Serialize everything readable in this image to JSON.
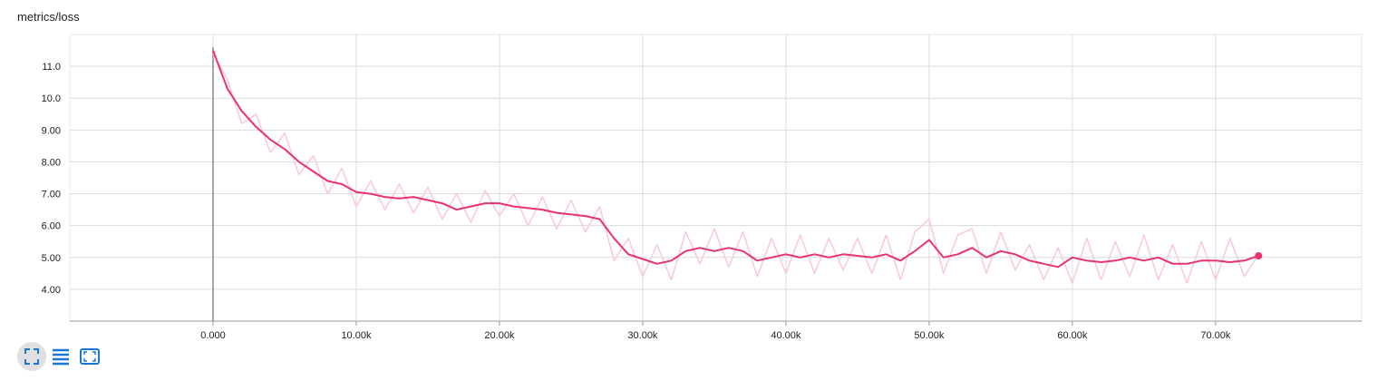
{
  "chart_data": {
    "type": "line",
    "title": "metrics/loss",
    "x": [
      0,
      1000,
      2000,
      3000,
      4000,
      5000,
      6000,
      7000,
      8000,
      9000,
      10000,
      11000,
      12000,
      13000,
      14000,
      15000,
      16000,
      17000,
      18000,
      19000,
      20000,
      21000,
      22000,
      23000,
      24000,
      25000,
      26000,
      27000,
      28000,
      29000,
      30000,
      31000,
      32000,
      33000,
      34000,
      35000,
      36000,
      37000,
      38000,
      39000,
      40000,
      41000,
      42000,
      43000,
      44000,
      45000,
      46000,
      47000,
      48000,
      49000,
      50000,
      51000,
      52000,
      53000,
      54000,
      55000,
      56000,
      57000,
      58000,
      59000,
      60000,
      61000,
      62000,
      63000,
      64000,
      65000,
      66000,
      67000,
      68000,
      69000,
      70000,
      71000,
      72000,
      73000
    ],
    "series": [
      {
        "color": "#f8c9d8",
        "values": [
          11.4,
          10.6,
          9.2,
          9.5,
          8.3,
          8.9,
          7.6,
          8.2,
          7.0,
          7.8,
          6.6,
          7.4,
          6.5,
          7.3,
          6.4,
          7.2,
          6.2,
          7.0,
          6.1,
          7.1,
          6.3,
          7.0,
          6.0,
          6.9,
          5.9,
          6.8,
          5.8,
          6.6,
          4.9,
          5.6,
          4.4,
          5.4,
          4.3,
          5.8,
          4.8,
          5.9,
          4.7,
          5.8,
          4.4,
          5.6,
          4.5,
          5.7,
          4.5,
          5.6,
          4.6,
          5.6,
          4.5,
          5.7,
          4.3,
          5.8,
          6.2,
          4.5,
          5.7,
          5.9,
          4.5,
          5.8,
          4.6,
          5.4,
          4.3,
          5.3,
          4.2,
          5.6,
          4.3,
          5.5,
          4.4,
          5.7,
          4.3,
          5.4,
          4.2,
          5.5,
          4.3,
          5.6,
          4.4,
          5.1
        ]
      },
      {
        "color": "#e8336f",
        "values": [
          11.5,
          10.3,
          9.6,
          9.1,
          8.7,
          8.4,
          8.0,
          7.7,
          7.4,
          7.3,
          7.05,
          7.0,
          6.9,
          6.85,
          6.9,
          6.8,
          6.7,
          6.5,
          6.6,
          6.7,
          6.7,
          6.6,
          6.55,
          6.5,
          6.4,
          6.35,
          6.3,
          6.2,
          5.6,
          5.1,
          4.95,
          4.8,
          4.9,
          5.2,
          5.3,
          5.2,
          5.3,
          5.2,
          4.9,
          5.0,
          5.1,
          5.0,
          5.1,
          5.0,
          5.1,
          5.05,
          5.0,
          5.1,
          4.9,
          5.2,
          5.55,
          5.0,
          5.1,
          5.3,
          5.0,
          5.2,
          5.1,
          4.9,
          4.8,
          4.7,
          5.0,
          4.9,
          4.85,
          4.9,
          5.0,
          4.9,
          5.0,
          4.8,
          4.8,
          4.9,
          4.9,
          4.85,
          4.9,
          5.05
        ]
      }
    ],
    "xlim": [
      -10000,
      80200
    ],
    "ylim": [
      3,
      12
    ],
    "xticks": [
      {
        "value": 0,
        "label": "0.000"
      },
      {
        "value": 10000,
        "label": "10.00k"
      },
      {
        "value": 20000,
        "label": "20.00k"
      },
      {
        "value": 30000,
        "label": "30.00k"
      },
      {
        "value": 40000,
        "label": "40.00k"
      },
      {
        "value": 50000,
        "label": "50.00k"
      },
      {
        "value": 60000,
        "label": "60.00k"
      },
      {
        "value": 70000,
        "label": "70.00k"
      }
    ],
    "yticks": [
      {
        "value": 4,
        "label": "4.00"
      },
      {
        "value": 5,
        "label": "5.00"
      },
      {
        "value": 6,
        "label": "6.00"
      },
      {
        "value": 7,
        "label": "7.00"
      },
      {
        "value": 8,
        "label": "8.00"
      },
      {
        "value": 9,
        "label": "9.00"
      },
      {
        "value": 10,
        "label": "10.0"
      },
      {
        "value": 11,
        "label": "11.0"
      }
    ],
    "grid": true
  }
}
